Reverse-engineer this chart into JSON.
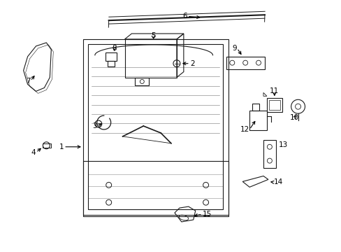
{
  "background_color": "#ffffff",
  "line_color": "#1a1a1a",
  "text_color": "#000000",
  "fig_width": 4.89,
  "fig_height": 3.6,
  "dpi": 100
}
